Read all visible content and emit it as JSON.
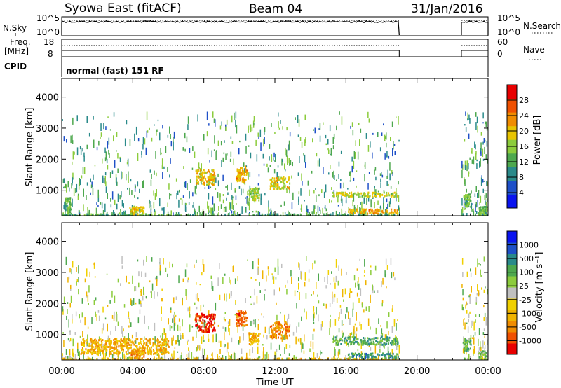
{
  "header": {
    "station": "Syowa East (fitACF)",
    "beam": "Beam 04",
    "date": "31/Jan/2016"
  },
  "status_panels": {
    "nsky_label": "N.Sky",
    "nsearch_label": "N.Search",
    "freq_label_line1": "Freq.",
    "freq_label_line2": "[MHz]",
    "nave_label": "Nave",
    "cpid_label": "CPID",
    "noise_left_ticks": [
      "10^5",
      "10^0"
    ],
    "noise_right_ticks": [
      "10^5",
      "10^0"
    ],
    "freq_left_ticks": [
      "18",
      "8"
    ],
    "nave_right_ticks": [
      "60",
      "0"
    ],
    "cpid_text": "normal (fast) 151 RF",
    "active_intervals_hours": [
      [
        0,
        19.0
      ],
      [
        22.5,
        24
      ]
    ]
  },
  "chart_data": [
    {
      "type": "heatmap",
      "name": "power",
      "xlabel": "",
      "ylabel": "Slant Range [km]",
      "xlim": [
        0,
        24
      ],
      "ylim": [
        180,
        4600
      ],
      "yticks": [
        1000,
        2000,
        3000,
        4000
      ],
      "colorbar": {
        "label": "Power [dB]",
        "ticks": [
          "4",
          "8",
          "12",
          "16",
          "20",
          "24",
          "28"
        ],
        "range": [
          0,
          30
        ],
        "colors": [
          "#0a14f0",
          "#1e50c8",
          "#2a8a8a",
          "#4ea84e",
          "#8ccc3c",
          "#e8c400",
          "#f08c00",
          "#f05000",
          "#e80000"
        ]
      },
      "features": [
        {
          "t": [
            0.0,
            18.9
          ],
          "r": [
            190,
            260
          ],
          "level": 0.35
        },
        {
          "t": [
            16.1,
            18.9
          ],
          "r": [
            280,
            420
          ],
          "level": 0.7
        },
        {
          "t": [
            15.2,
            18.9
          ],
          "r": [
            820,
            960
          ],
          "level": 0.55
        },
        {
          "t": [
            7.5,
            8.6
          ],
          "r": [
            1200,
            1700
          ],
          "level": 0.65
        },
        {
          "t": [
            9.8,
            10.4
          ],
          "r": [
            1300,
            1800
          ],
          "level": 0.7
        },
        {
          "t": [
            11.7,
            12.8
          ],
          "r": [
            1050,
            1450
          ],
          "level": 0.6
        },
        {
          "t": [
            10.5,
            11.1
          ],
          "r": [
            700,
            1100
          ],
          "level": 0.5
        },
        {
          "t": [
            3.8,
            4.6
          ],
          "r": [
            250,
            500
          ],
          "level": 0.65
        },
        {
          "t": [
            0.2,
            0.5
          ],
          "r": [
            300,
            800
          ],
          "level": 0.4
        },
        {
          "t": [
            23.4,
            24.0
          ],
          "r": [
            200,
            500
          ],
          "level": 0.4
        },
        {
          "t": [
            22.6,
            23.0
          ],
          "r": [
            500,
            900
          ],
          "level": 0.4
        }
      ]
    },
    {
      "type": "heatmap",
      "name": "velocity",
      "xlabel": "Time UT",
      "ylabel": "Slant Range [km]",
      "xlim": [
        0,
        24
      ],
      "ylim": [
        180,
        4600
      ],
      "xticks": [
        "00:00",
        "04:00",
        "08:00",
        "12:00",
        "16:00",
        "20:00",
        "00:00"
      ],
      "yticks": [
        1000,
        2000,
        3000,
        4000
      ],
      "colorbar": {
        "label": "Velocity [m s⁻¹]",
        "ticks": [
          "-1000",
          "-500",
          "-100",
          "-25",
          "25",
          "100",
          "500",
          "1000"
        ],
        "range": [
          -1200,
          1200
        ],
        "colors": [
          "#e80000",
          "#f05000",
          "#f08c00",
          "#f0b400",
          "#f0d000",
          "#c0c0c0",
          "#8ccc3c",
          "#4ea84e",
          "#2a8a8a",
          "#1e50c8",
          "#0a14f0"
        ]
      },
      "features": [
        {
          "t": [
            0.0,
            18.9
          ],
          "r": [
            190,
            260
          ],
          "level": 0.3
        },
        {
          "t": [
            16.1,
            18.9
          ],
          "r": [
            280,
            420
          ],
          "level": 0.75
        },
        {
          "t": [
            15.2,
            18.9
          ],
          "r": [
            700,
            960
          ],
          "level": 0.7
        },
        {
          "t": [
            7.5,
            8.6
          ],
          "r": [
            1100,
            1700
          ],
          "level": 0.05
        },
        {
          "t": [
            9.8,
            10.4
          ],
          "r": [
            1300,
            1800
          ],
          "level": 0.15
        },
        {
          "t": [
            11.7,
            12.8
          ],
          "r": [
            900,
            1450
          ],
          "level": 0.2
        },
        {
          "t": [
            10.5,
            11.1
          ],
          "r": [
            700,
            1100
          ],
          "level": 0.3
        },
        {
          "t": [
            3.8,
            4.6
          ],
          "r": [
            250,
            500
          ],
          "level": 0.2
        },
        {
          "t": [
            1.0,
            6.0
          ],
          "r": [
            400,
            900
          ],
          "level": 0.28
        },
        {
          "t": [
            23.4,
            24.0
          ],
          "r": [
            200,
            500
          ],
          "level": 0.6
        },
        {
          "t": [
            22.6,
            23.0
          ],
          "r": [
            500,
            900
          ],
          "level": 0.65
        }
      ]
    }
  ]
}
